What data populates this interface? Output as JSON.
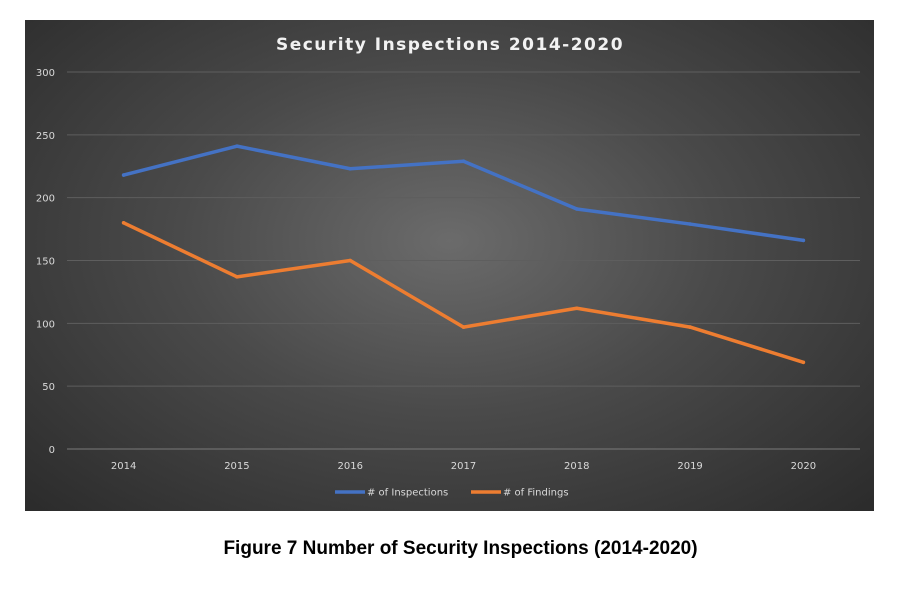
{
  "chart_data": {
    "type": "line",
    "title": "Security Inspections 2014-2020",
    "categories": [
      "2014",
      "2015",
      "2016",
      "2017",
      "2018",
      "2019",
      "2020"
    ],
    "series": [
      {
        "name": "# of Inspections",
        "color": "#4472c4",
        "values": [
          218,
          241,
          223,
          229,
          191,
          179,
          166
        ]
      },
      {
        "name": "# of Findings",
        "color": "#ed7d31",
        "values": [
          180,
          137,
          150,
          97,
          112,
          97,
          69
        ]
      }
    ],
    "ylim": [
      0,
      300
    ],
    "yticks": [
      "0",
      "50",
      "100",
      "150",
      "200",
      "250",
      "300"
    ],
    "grid": true,
    "legend_position": "bottom"
  },
  "caption": "Figure 7  Number of Security Inspections (2014-2020)"
}
